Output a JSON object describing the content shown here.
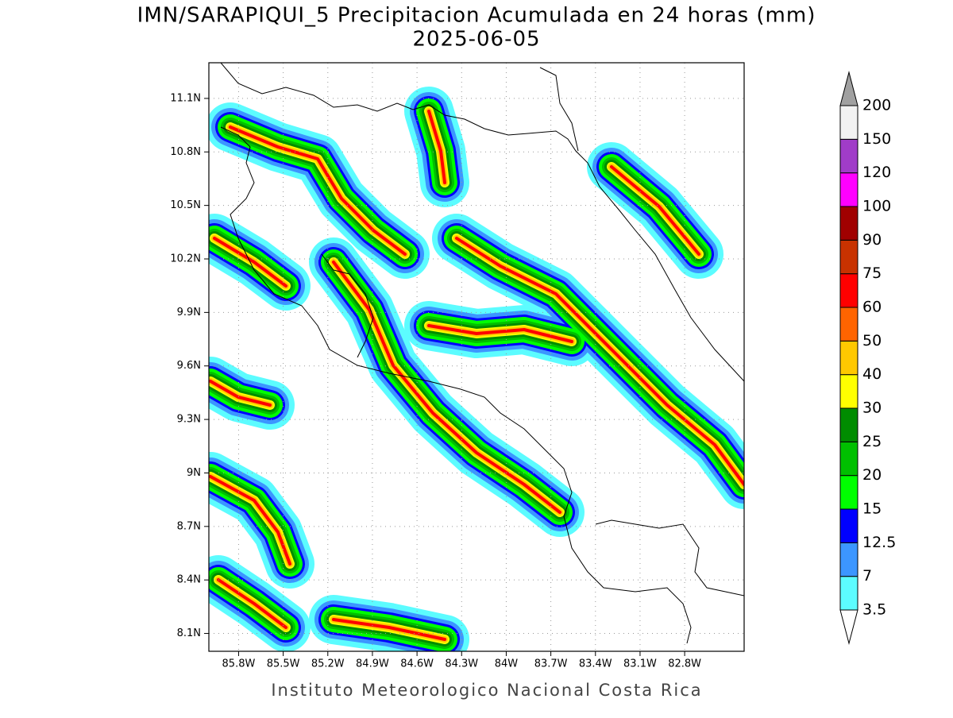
{
  "title": "IMN/SARAPIQUI_5 Precipitacion Acumulada en 24 horas (mm)",
  "date": "2025-06-05",
  "map": {
    "xlim": [
      -86.0,
      -82.4
    ],
    "ylim": [
      8.0,
      11.3
    ],
    "yticks": [
      {
        "value": 8.1,
        "label": "8.1N"
      },
      {
        "value": 8.4,
        "label": "8.4N"
      },
      {
        "value": 8.7,
        "label": "8.7N"
      },
      {
        "value": 9.0,
        "label": "9N"
      },
      {
        "value": 9.3,
        "label": "9.3N"
      },
      {
        "value": 9.6,
        "label": "9.6N"
      },
      {
        "value": 9.9,
        "label": "9.9N"
      },
      {
        "value": 10.2,
        "label": "10.2N"
      },
      {
        "value": 10.5,
        "label": "10.5N"
      },
      {
        "value": 10.8,
        "label": "10.8N"
      },
      {
        "value": 11.1,
        "label": "11.1N"
      }
    ],
    "xticks": [
      {
        "value": -85.8,
        "label": "85.8W"
      },
      {
        "value": -85.5,
        "label": "85.5W"
      },
      {
        "value": -85.2,
        "label": "85.2W"
      },
      {
        "value": -84.9,
        "label": "84.9W"
      },
      {
        "value": -84.6,
        "label": "84.6W"
      },
      {
        "value": -84.3,
        "label": "84.3W"
      },
      {
        "value": -84.0,
        "label": "84W"
      },
      {
        "value": -83.7,
        "label": "83.7W"
      },
      {
        "value": -83.4,
        "label": "83.4W"
      },
      {
        "value": -83.1,
        "label": "83.1W"
      },
      {
        "value": -82.8,
        "label": "82.8W"
      }
    ]
  },
  "colorbar": {
    "levels": [
      3.5,
      7,
      12.5,
      15,
      20,
      25,
      30,
      40,
      50,
      60,
      75,
      90,
      100,
      120,
      150,
      200
    ],
    "colors": [
      "#5cfcff",
      "#3c96ff",
      "#0000ff",
      "#00ff00",
      "#00c000",
      "#008c00",
      "#ffff00",
      "#ffc800",
      "#ff6400",
      "#ff0000",
      "#c83200",
      "#a00000",
      "#ff00ff",
      "#a03cc8",
      "#f2f2f2"
    ],
    "under_color": "#ffffff",
    "over_color": "#a0a0a0"
  },
  "footer": "Instituto Meteorologico Nacional Costa Rica"
}
